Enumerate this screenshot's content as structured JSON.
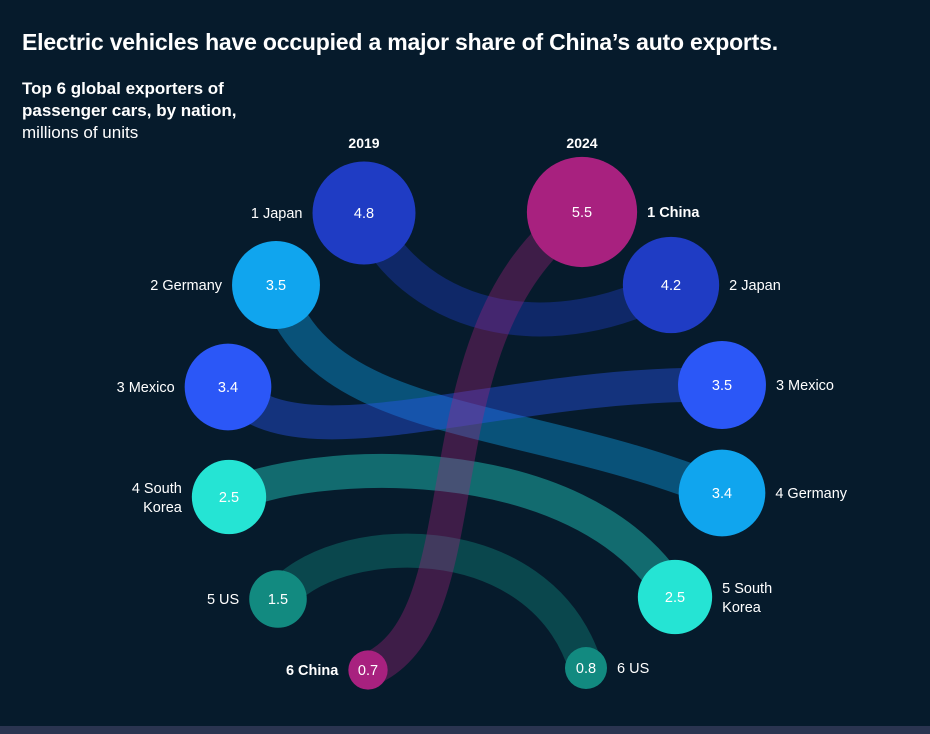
{
  "title": "Electric vehicles have occupied a major share of China’s auto exports.",
  "subtitle_bold": "Top 6 global exporters of passenger cars, by nation,",
  "subtitle_unit": "millions of units",
  "chart_data": {
    "type": "bump",
    "title": "Top 6 global exporters of passenger cars, by nation",
    "unit": "millions of units",
    "years": [
      "2019",
      "2024"
    ],
    "series": [
      {
        "name": "Japan",
        "rank2019": 1,
        "value2019": 4.8,
        "rank2024": 2,
        "value2024": 4.2,
        "label2019": "1 Japan",
        "label2024": "2 Japan",
        "color": "#1f3cc4"
      },
      {
        "name": "Germany",
        "rank2019": 2,
        "value2019": 3.5,
        "rank2024": 4,
        "value2024": 3.4,
        "label2019": "2 Germany",
        "label2024": "4 Germany",
        "color": "#10a5ee"
      },
      {
        "name": "Mexico",
        "rank2019": 3,
        "value2019": 3.4,
        "rank2024": 3,
        "value2024": 3.5,
        "label2019": "3 Mexico",
        "label2024": "3 Mexico",
        "color": "#2b57f7"
      },
      {
        "name": "South Korea",
        "rank2019": 4,
        "value2019": 2.5,
        "rank2024": 5,
        "value2024": 2.5,
        "label2019": "4 South Korea",
        "label2024": "5 South Korea",
        "color": "#25e4d4"
      },
      {
        "name": "US",
        "rank2019": 5,
        "value2019": 1.5,
        "rank2024": 6,
        "value2024": 0.8,
        "label2019": "5 US",
        "label2024": "6 US",
        "color": "#128a80"
      },
      {
        "name": "China",
        "rank2019": 6,
        "value2019": 0.7,
        "rank2024": 1,
        "value2024": 5.5,
        "label2019": "6 China",
        "label2024": "1 China",
        "color": "#a8217f",
        "highlight": true
      }
    ]
  }
}
